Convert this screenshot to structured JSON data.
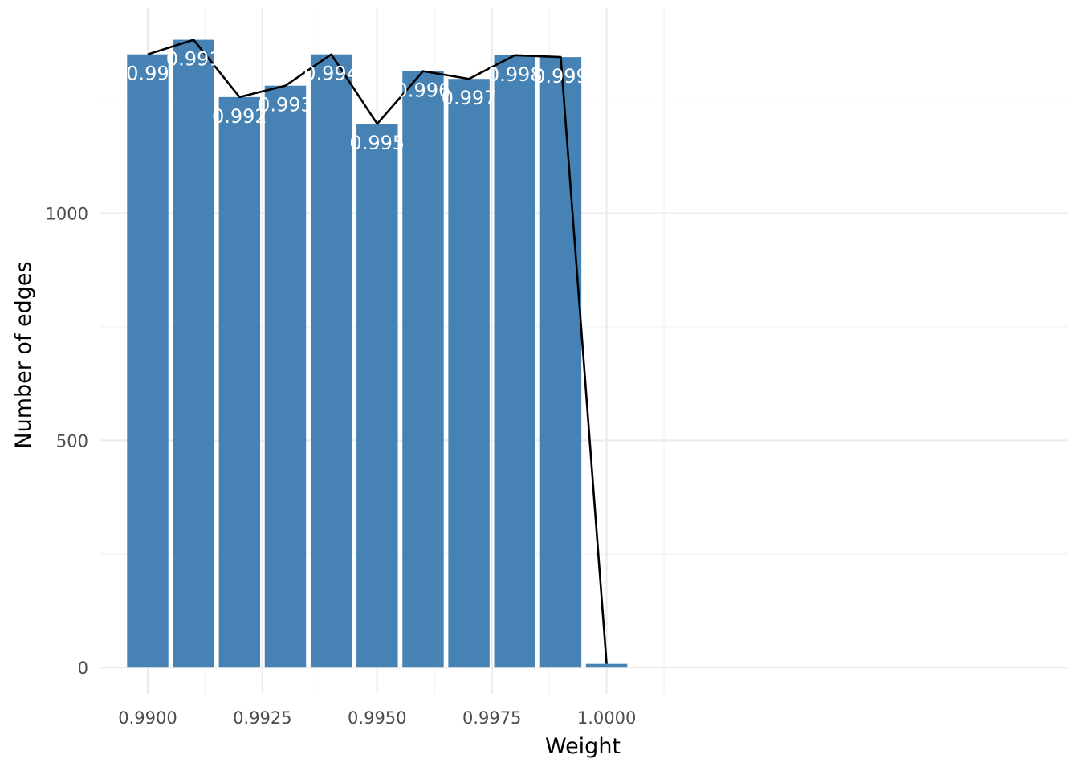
{
  "chart_data": {
    "type": "bar",
    "title": "",
    "xlabel": "Weight",
    "ylabel": "Number of edges",
    "x": [
      0.99,
      0.991,
      0.992,
      0.993,
      0.994,
      0.995,
      0.996,
      0.997,
      0.998,
      0.999,
      1.0
    ],
    "values": [
      1350,
      1382,
      1256,
      1281,
      1350,
      1197,
      1313,
      1296,
      1348,
      1344,
      8
    ],
    "bar_labels": [
      "0.99",
      "0.991",
      "0.992",
      "0.993",
      "0.994",
      "0.995",
      "0.996",
      "0.997",
      "0.998",
      "0.999",
      ""
    ],
    "line_overlay": {
      "x": [
        0.99,
        0.991,
        0.992,
        0.993,
        0.994,
        0.995,
        0.996,
        0.997,
        0.998,
        0.999,
        1.0
      ],
      "values": [
        1350,
        1382,
        1256,
        1281,
        1350,
        1197,
        1313,
        1296,
        1348,
        1344,
        8
      ]
    },
    "x_ticks": [
      0.99,
      0.9925,
      0.995,
      0.9975,
      1.0
    ],
    "x_tick_labels": [
      "0.9900",
      "0.9925",
      "0.9950",
      "0.9975",
      "1.0000"
    ],
    "y_ticks": [
      0,
      500,
      1000
    ],
    "y_tick_labels": [
      "0",
      "500",
      "1000"
    ],
    "xlim": [
      0.98895,
      1.01005
    ],
    "ylim": [
      -58,
      1452
    ],
    "grid": true,
    "legend": "none",
    "colors": {
      "bar": "#4682b4",
      "line": "#000000",
      "bar_label": "#ffffff"
    }
  }
}
